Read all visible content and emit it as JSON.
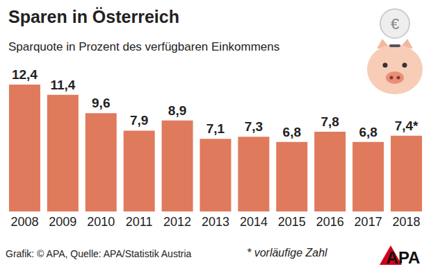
{
  "chart_data": {
    "type": "bar",
    "title": "Sparen in Österreich",
    "subtitle": "Sparquote in Prozent des verfügbaren Einkommens",
    "categories": [
      "2008",
      "2009",
      "2010",
      "2011",
      "2012",
      "2013",
      "2014",
      "2015",
      "2016",
      "2017",
      "2018"
    ],
    "values": [
      12.4,
      11.4,
      9.6,
      7.9,
      8.9,
      7.1,
      7.3,
      6.8,
      7.8,
      6.8,
      7.4
    ],
    "value_labels": [
      "12,4",
      "11,4",
      "9,6",
      "7,9",
      "8,9",
      "7,1",
      "7,3",
      "6,8",
      "7,8",
      "6,8",
      "7,4*"
    ],
    "color": "#e07a5c",
    "ylim": [
      0,
      12.4
    ],
    "grid": false,
    "data_labels": true,
    "tick_labels": "x",
    "source": "Grafik: © APA, Quelle: APA/Statistik Austria",
    "footnote": "* vorläufige Zahl",
    "logo": "APA",
    "icon": "€"
  }
}
